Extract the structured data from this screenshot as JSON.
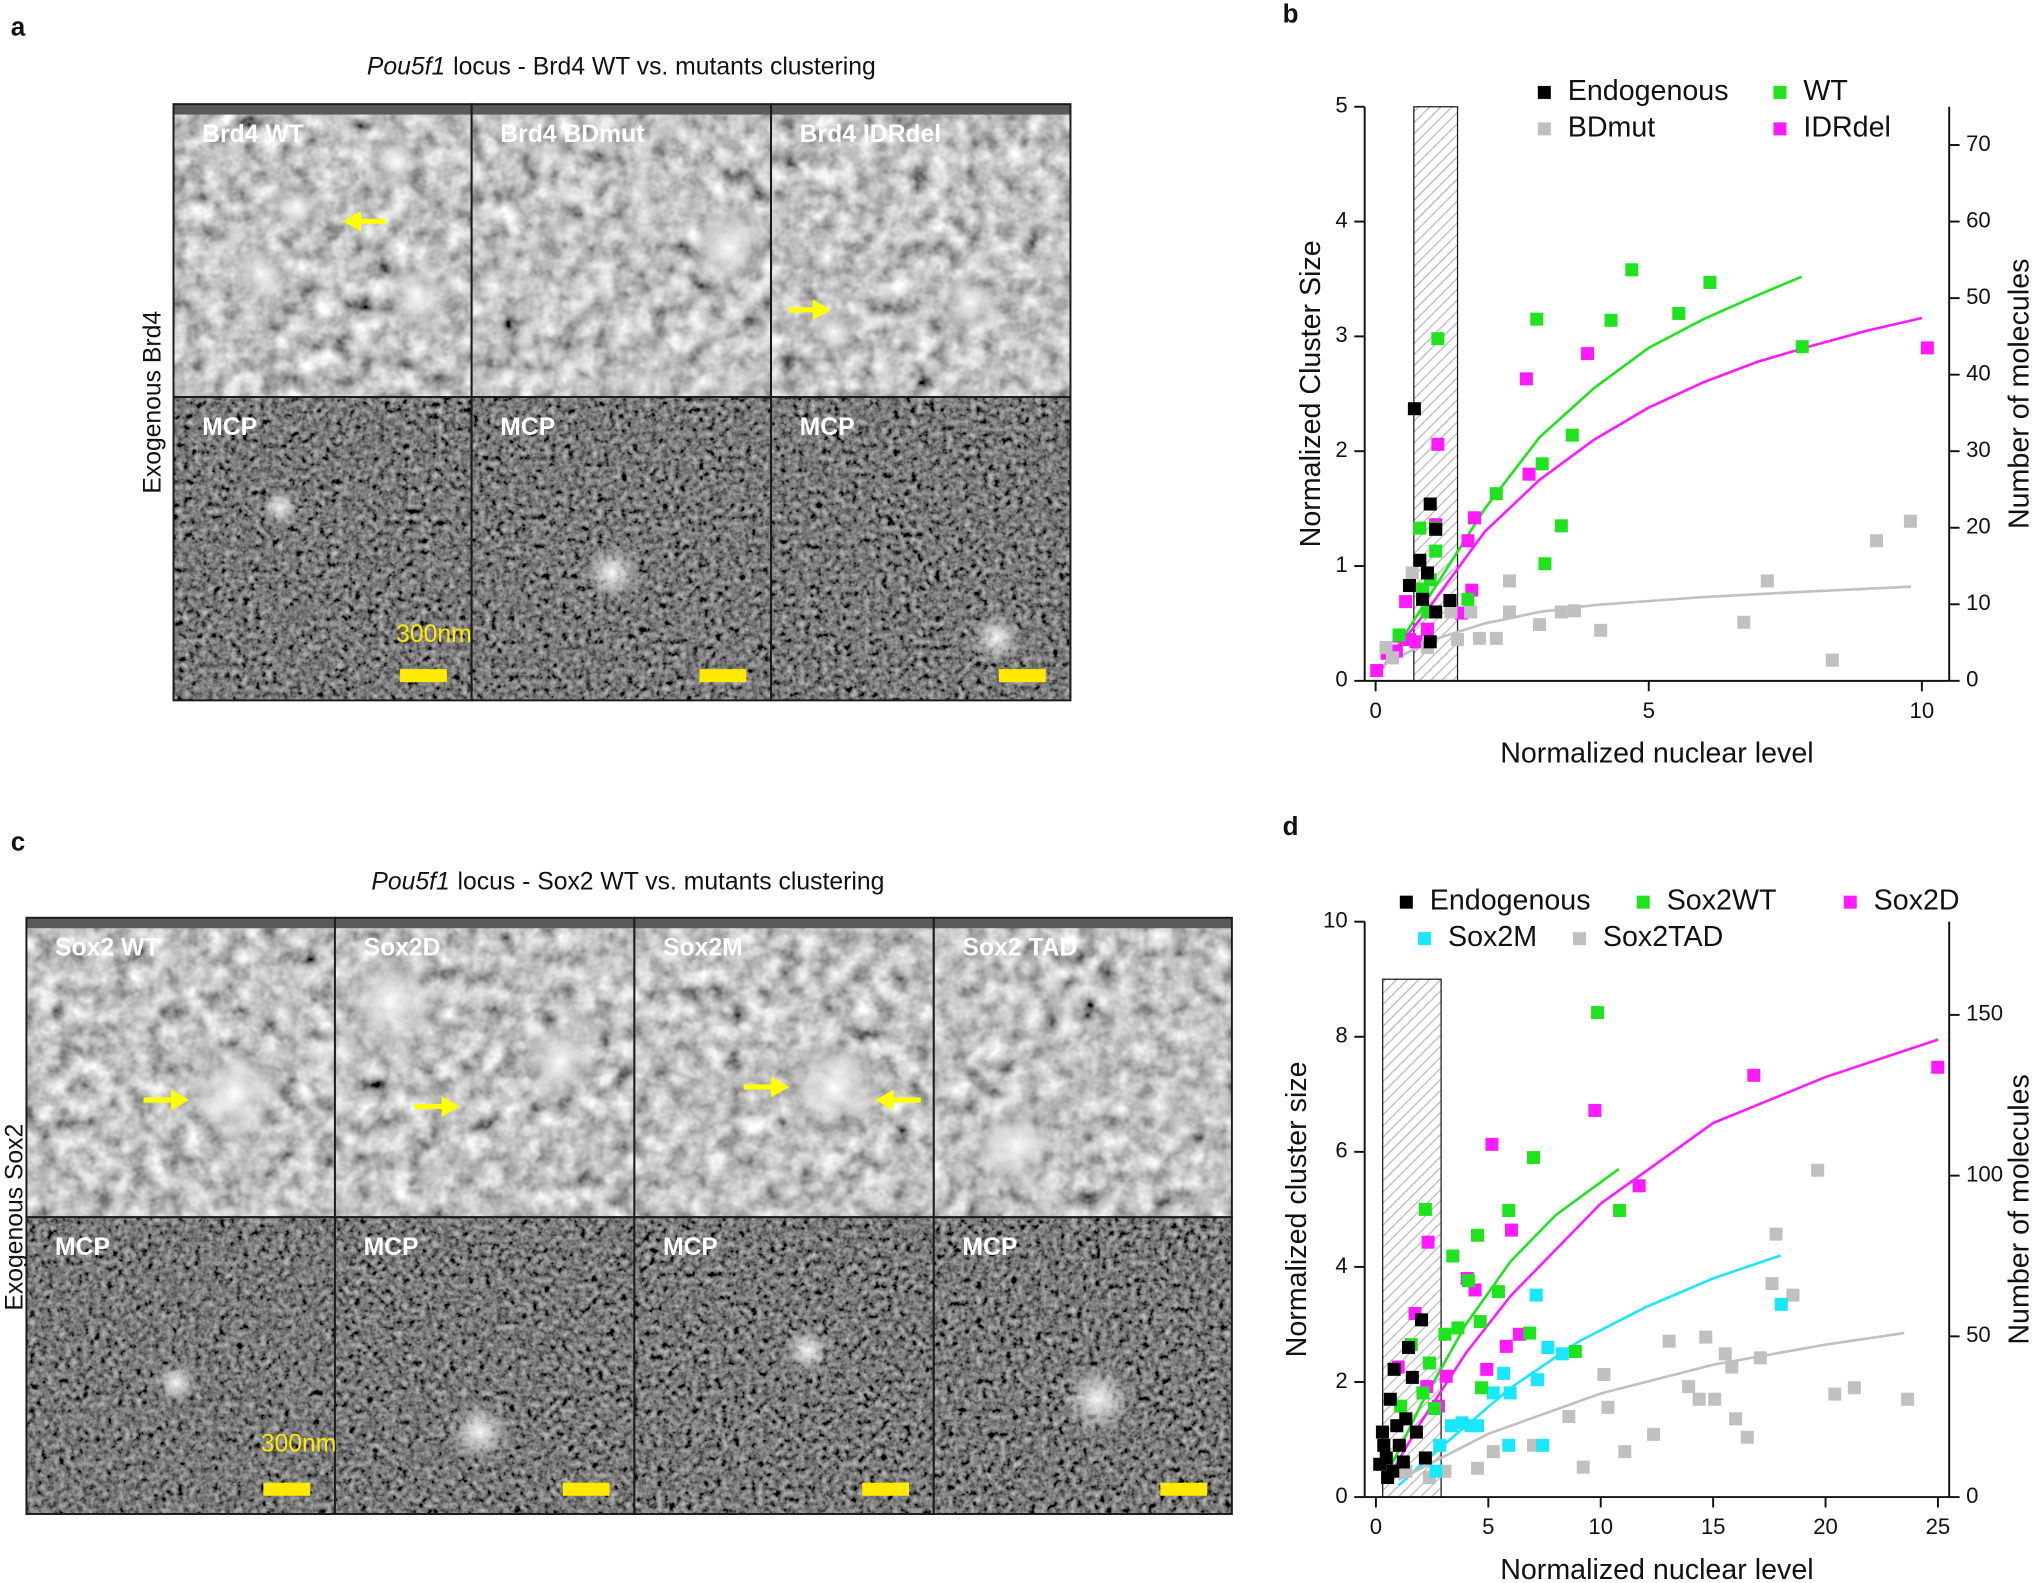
{
  "panels": [
    {
      "label": "a",
      "title_italic": "Pou5f1",
      "title": "locus - Brd4  WT vs. mutants clustering",
      "side_label": "Exogenous Brd4",
      "tiles": [
        "Brd4 WT",
        "Brd4 BDmut",
        "Brd4 IDRdel",
        "MCP",
        "MCP",
        "MCP"
      ],
      "scale_label": "300nm"
    },
    {
      "label": "c",
      "title_italic": "Pou5f1",
      "title": "locus - Sox2 WT vs. mutants clustering",
      "side_label": "Exogenous Sox2",
      "tiles": [
        "Sox2 WT",
        "Sox2D",
        "Sox2M",
        "Sox2 TAD",
        "MCP",
        "MCP",
        "MCP",
        "MCP"
      ],
      "scale_label": "300nm"
    }
  ],
  "chart_data": [
    {
      "type": "scatter",
      "label": "b",
      "x_label": "Normalized nuclear level",
      "y_label": "Normalized Cluster Size",
      "y2_label": "Number of molecules",
      "xlim": [
        -0.2,
        10.5
      ],
      "xticks": [
        0,
        5,
        10
      ],
      "ylim": [
        0,
        5
      ],
      "yticks": [
        0,
        1,
        2,
        3,
        4,
        5
      ],
      "y2lim": [
        0,
        75
      ],
      "y2ticks": [
        0,
        10,
        20,
        30,
        40,
        50,
        60,
        70
      ],
      "highlight": {
        "x": [
          0.7,
          1.5
        ],
        "y": [
          0,
          5
        ]
      },
      "series": [
        {
          "name": "Endogenous",
          "color": "#000000",
          "x": [
            0.71,
            1.0,
            1.1,
            0.81,
            0.95,
            0.86,
            1.1,
            1.36,
            1.0,
            0.62
          ],
          "values": [
            2.37,
            1.54,
            1.32,
            1.05,
            0.94,
            0.71,
            0.6,
            0.7,
            0.34,
            0.83
          ]
        },
        {
          "name": "WT",
          "color": "#1fe31f",
          "x": [
            1.14,
            1.1,
            0.81,
            1.1,
            1.0,
            0.86,
            0.95,
            4.69,
            6.12,
            2.95,
            4.31,
            5.55,
            7.81,
            2.21,
            3.05,
            3.6,
            3.4,
            3.1,
            1.69,
            0.43
          ],
          "values": [
            2.98,
            1.33,
            1.33,
            1.13,
            0.88,
            0.8,
            0.6,
            3.58,
            3.47,
            3.15,
            3.14,
            3.2,
            2.91,
            1.63,
            1.89,
            2.14,
            1.35,
            1.02,
            0.71,
            0.4
          ]
        },
        {
          "name": "BDmut",
          "color": "#c0c0c0",
          "x": [
            0.67,
            0.95,
            1.9,
            2.21,
            2.45,
            2.45,
            3.0,
            3.4,
            3.64,
            4.12,
            6.74,
            7.17,
            8.36,
            9.17,
            9.79,
            1.5,
            1.38,
            0.19,
            1.74,
            0.31
          ],
          "values": [
            0.94,
            0.29,
            0.37,
            0.37,
            0.87,
            0.6,
            0.49,
            0.6,
            0.61,
            0.44,
            0.51,
            0.87,
            0.18,
            1.22,
            1.39,
            0.36,
            0.6,
            0.29,
            0.6,
            0.2
          ]
        },
        {
          "name": "IDRdel",
          "color": "#ff19ff",
          "x": [
            1.14,
            1.1,
            1.76,
            1.69,
            1.81,
            2.81,
            2.76,
            3.88,
            10.1,
            1.57,
            0.55,
            0.62,
            0.21,
            0.02,
            0.43,
            0.74,
            0.38,
            0.95
          ],
          "values": [
            2.06,
            1.36,
            0.79,
            1.22,
            1.42,
            1.8,
            2.63,
            2.85,
            2.9,
            0.59,
            0.69,
            0.36,
            0.24,
            0.09,
            0.39,
            0.34,
            0.26,
            0.45
          ]
        }
      ],
      "fits": [
        {
          "color": "#1fe31f",
          "x": [
            0.2,
            1,
            2,
            3,
            4,
            5,
            6,
            7,
            7.8
          ],
          "values": [
            0.15,
            0.75,
            1.5,
            2.12,
            2.55,
            2.9,
            3.15,
            3.36,
            3.52
          ]
        },
        {
          "color": "#ff19ff",
          "x": [
            0.1,
            1,
            2,
            3,
            4,
            5,
            6,
            7,
            8,
            9,
            10
          ],
          "values": [
            0.1,
            0.65,
            1.3,
            1.75,
            2.1,
            2.38,
            2.6,
            2.78,
            2.92,
            3.05,
            3.16
          ]
        },
        {
          "color": "#c0c0c0",
          "x": [
            0,
            1,
            2,
            3,
            4,
            6,
            8,
            9.8
          ],
          "values": [
            0.1,
            0.35,
            0.5,
            0.6,
            0.66,
            0.73,
            0.78,
            0.82
          ]
        }
      ]
    },
    {
      "type": "scatter",
      "label": "d",
      "x_label": "Normalized nuclear level",
      "y_label": "Normalized cluster size",
      "y2_label": "Number of molecules",
      "xlim": [
        -0.5,
        25.5
      ],
      "xticks": [
        0,
        5,
        10,
        15,
        20,
        25
      ],
      "ylim": [
        0,
        10
      ],
      "yticks": [
        0,
        2,
        4,
        6,
        8,
        10
      ],
      "y2lim": [
        0,
        179
      ],
      "y2ticks": [
        0,
        50,
        100,
        150
      ],
      "highlight": {
        "x": [
          0.3,
          2.9
        ],
        "y": [
          0,
          9
        ]
      },
      "series": [
        {
          "name": "Endogenous",
          "color": "#000000",
          "x": [
            0.64,
            0.81,
            2.03,
            1.45,
            1.62,
            0.29,
            0.46,
            0.75,
            1.04,
            1.33,
            0.17,
            1.22,
            1.8,
            2.2,
            0.93,
            0.52,
            0.35
          ],
          "values": [
            1.7,
            2.22,
            3.08,
            2.6,
            2.08,
            1.13,
            0.68,
            0.45,
            0.9,
            1.36,
            0.57,
            0.61,
            1.13,
            0.68,
            1.24,
            0.34,
            0.9
          ]
        },
        {
          "name": "Sox2WT",
          "color": "#1fe31f",
          "x": [
            9.86,
            7.01,
            5.91,
            10.84,
            4.52,
            2.2,
            3.42,
            5.45,
            4.12,
            4.64,
            6.84,
            8.87,
            1.57,
            2.38,
            3.07,
            3.65,
            2.09,
            4.7,
            2.61,
            1.1
          ],
          "values": [
            8.42,
            5.9,
            4.98,
            4.98,
            4.55,
            5.0,
            4.19,
            3.57,
            3.76,
            3.05,
            2.85,
            2.53,
            2.65,
            2.33,
            2.83,
            2.94,
            1.81,
            1.9,
            1.54,
            1.58
          ]
        },
        {
          "name": "Sox2D",
          "color": "#ff19ff",
          "x": [
            24.99,
            16.81,
            11.71,
            5.16,
            9.74,
            6.03,
            2.32,
            1.74,
            4.06,
            4.41,
            6.38,
            5.8,
            4.93,
            0.99,
            3.13,
            2.26,
            2.78
          ],
          "values": [
            7.47,
            7.33,
            5.41,
            6.13,
            6.72,
            4.64,
            4.43,
            3.19,
            3.8,
            3.6,
            2.83,
            2.62,
            2.22,
            2.26,
            2.1,
            1.92,
            1.58
          ]
        },
        {
          "name": "Sox2M",
          "color": "#19e6ff",
          "x": [
            18.03,
            7.13,
            5.68,
            7.65,
            8.29,
            7.19,
            5.97,
            5.22,
            3.83,
            4.52,
            5.91,
            7.42,
            2.84,
            2.67,
            3.36,
            4.23
          ],
          "values": [
            3.35,
            3.51,
            2.15,
            2.6,
            2.49,
            2.04,
            1.81,
            1.81,
            1.29,
            1.24,
            0.9,
            0.9,
            0.9,
            0.45,
            1.24,
            1.24
          ]
        },
        {
          "name": "Sox2TAD",
          "color": "#c0c0c0",
          "x": [
            19.65,
            17.8,
            17.62,
            18.55,
            14.67,
            13.04,
            15.54,
            17.1,
            15.83,
            13.91,
            20.41,
            21.28,
            23.65,
            10.14,
            14.38,
            15.07,
            16.52,
            16.0,
            12.35,
            11.07,
            9.22,
            8.58,
            7.01,
            5.22,
            4.52,
            3.07,
            2.38,
            1.33,
            10.32
          ],
          "values": [
            5.68,
            4.57,
            3.71,
            3.51,
            2.78,
            2.71,
            2.49,
            2.42,
            2.26,
            1.92,
            1.79,
            1.9,
            1.7,
            2.13,
            1.7,
            1.7,
            1.04,
            1.36,
            1.09,
            0.79,
            0.52,
            1.4,
            0.9,
            0.79,
            0.5,
            0.45,
            0.34,
            0.45,
            1.56
          ]
        }
      ],
      "fits": [
        {
          "color": "#1fe31f",
          "x": [
            0.5,
            2,
            4,
            6,
            8,
            10.8
          ],
          "values": [
            0.4,
            1.6,
            3.0,
            4.1,
            4.9,
            5.7
          ]
        },
        {
          "color": "#ff19ff",
          "x": [
            0.5,
            2,
            4,
            6,
            10,
            15,
            20,
            25
          ],
          "values": [
            0.3,
            1.3,
            2.5,
            3.5,
            5.1,
            6.5,
            7.3,
            7.95
          ]
        },
        {
          "color": "#19e6ff",
          "x": [
            1,
            3,
            6,
            9,
            12,
            15,
            18
          ],
          "values": [
            0.2,
            0.9,
            1.9,
            2.7,
            3.3,
            3.8,
            4.2
          ]
        },
        {
          "color": "#c0c0c0",
          "x": [
            1,
            5,
            10,
            15,
            20,
            23.5
          ],
          "values": [
            0.3,
            1.1,
            1.8,
            2.3,
            2.65,
            2.85
          ]
        }
      ]
    }
  ]
}
